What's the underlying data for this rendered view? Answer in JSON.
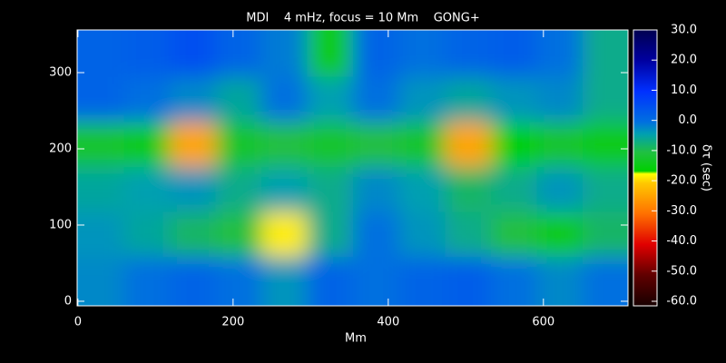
{
  "chart_data": {
    "type": "heatmap",
    "title": "MDI    4 mHz, focus = 10 Mm    GONG+",
    "xlabel": "Mm",
    "colorbar_label": "δτ (sec)",
    "xlim": [
      -1,
      709
    ],
    "ylim": [
      -6,
      356
    ],
    "xticks": [
      0,
      200,
      400,
      600
    ],
    "yticks": [
      0,
      100,
      200,
      300
    ],
    "x": [
      30,
      89,
      148,
      207,
      266,
      325,
      384,
      444,
      503,
      562,
      621,
      680
    ],
    "y": [
      30,
      89,
      148,
      207,
      266,
      325
    ],
    "z": [
      [
        -2,
        0,
        2,
        0,
        -3,
        2,
        0,
        2,
        3,
        0,
        -2,
        0
      ],
      [
        -3,
        -5,
        -8,
        -10,
        -18,
        -6,
        0,
        -3,
        -6,
        -10,
        -14,
        -8
      ],
      [
        -5,
        -4,
        -3,
        -6,
        -4,
        -6,
        -2,
        -4,
        -8,
        -6,
        -3,
        -6
      ],
      [
        -12,
        -14,
        -24,
        -12,
        -10,
        -12,
        -10,
        -12,
        -24,
        -16,
        -12,
        -14
      ],
      [
        2,
        0,
        -2,
        -5,
        0,
        -4,
        0,
        -3,
        -5,
        -3,
        -2,
        -6
      ],
      [
        2,
        3,
        5,
        2,
        -1,
        -14,
        2,
        0,
        2,
        3,
        0,
        -6
      ]
    ],
    "zlim": [
      -60,
      30
    ],
    "zticks": [
      {
        "value": 30,
        "label": "30.0"
      },
      {
        "value": 20,
        "label": "20.0"
      },
      {
        "value": 10,
        "label": "10.0"
      },
      {
        "value": 0,
        "label": "0.0"
      },
      {
        "value": -10,
        "label": "-10.0"
      },
      {
        "value": -20,
        "label": "-20.0"
      },
      {
        "value": -30,
        "label": "-30.0"
      },
      {
        "value": -40,
        "label": "-40.0"
      },
      {
        "value": -50,
        "label": "-50.0"
      },
      {
        "value": -60,
        "label": "-60.0"
      }
    ],
    "colorscale": [
      [
        -60,
        "#180000"
      ],
      [
        -50,
        "#600000"
      ],
      [
        -40,
        "#e00000"
      ],
      [
        -30,
        "#ff7000"
      ],
      [
        -20,
        "#ffc800"
      ],
      [
        -17,
        "#ffff00"
      ],
      [
        -16,
        "#00d000"
      ],
      [
        -10,
        "#20c040"
      ],
      [
        -4,
        "#00a0b0"
      ],
      [
        0,
        "#0070e0"
      ],
      [
        10,
        "#0030ff"
      ],
      [
        20,
        "#0000a0"
      ],
      [
        30,
        "#000050"
      ]
    ]
  }
}
